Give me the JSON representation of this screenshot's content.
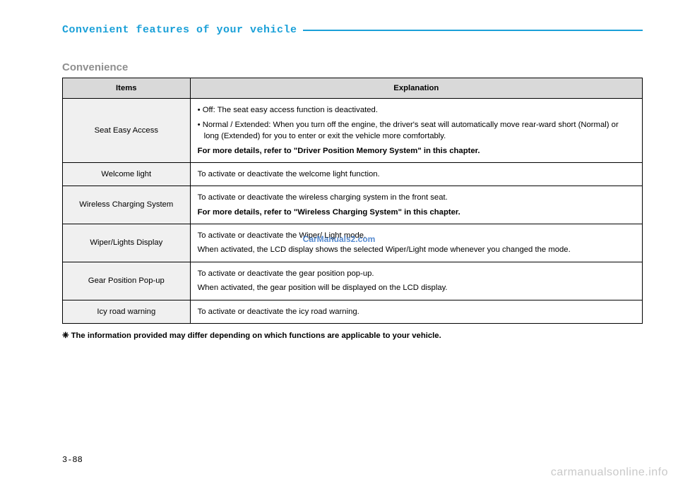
{
  "chapter_title": "Convenient features of your vehicle",
  "section_title": "Convenience",
  "table": {
    "header": {
      "items": "Items",
      "explanation": "Explanation"
    },
    "rows": [
      {
        "item": "Seat Easy Access",
        "lines": [
          {
            "text": "• Off: The seat easy access function is deactivated.",
            "hang": true
          },
          {
            "text": "• Normal / Extended: When you turn off the engine, the driver's seat will automatically move rear-ward short (Normal) or long (Extended) for you to enter or exit the vehicle more comfortably.",
            "hang": true
          },
          {
            "text": "For more details, refer to \"Driver Position Memory System\" in this chapter.",
            "bold": true
          }
        ]
      },
      {
        "item": "Welcome light",
        "lines": [
          {
            "text": "To activate or deactivate the welcome light function."
          }
        ]
      },
      {
        "item": "Wireless Charging System",
        "lines": [
          {
            "text": "To activate or deactivate the wireless charging system in the front seat."
          },
          {
            "text": "For more details, refer to \"Wireless Charging System\" in this chapter.",
            "bold": true
          }
        ]
      },
      {
        "item": "Wiper/Lights Display",
        "lines": [
          {
            "text": "To activate or deactivate the Wiper/ Light mode."
          },
          {
            "text": "When activated, the LCD display shows the selected Wiper/Light mode whenever you changed the mode."
          }
        ]
      },
      {
        "item": "Gear Position Pop-up",
        "lines": [
          {
            "text": "To activate or deactivate the gear position pop-up."
          },
          {
            "text": "When activated, the gear position will be displayed on the LCD display."
          }
        ]
      },
      {
        "item": "Icy road warning",
        "lines": [
          {
            "text": "To activate or deactivate the icy road warning."
          }
        ]
      }
    ]
  },
  "footnote": "❈ The information provided may differ depending on which functions are applicable to your vehicle.",
  "page_number": "3-88",
  "watermark_center": "CarManuals2.com",
  "watermark_corner": "carmanualsonline.info",
  "colors": {
    "accent": "#1aa0d8",
    "section_gray": "#8f8f8f",
    "header_bg": "#d9d9d9",
    "item_bg": "#f0f0f0",
    "watermark_center": "#3a77c8",
    "watermark_corner": "#c9c9c9"
  }
}
